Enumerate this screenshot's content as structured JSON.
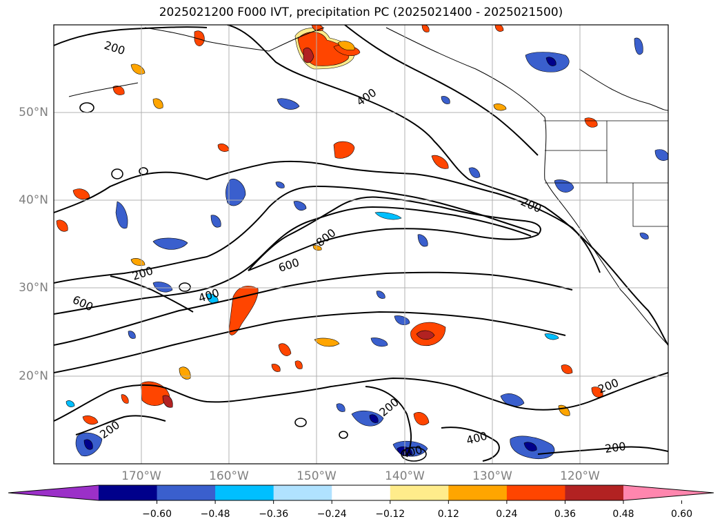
{
  "title": "2025021200 F000 IVT, precipitation PC (2025021400 - 2025021500)",
  "map": {
    "lat_ticks": [
      {
        "value": 50,
        "label": "50°N"
      },
      {
        "value": 40,
        "label": "40°N"
      },
      {
        "value": 30,
        "label": "30°N"
      },
      {
        "value": 20,
        "label": "20°N"
      }
    ],
    "lon_ticks": [
      {
        "value": -170,
        "label": "170°W"
      },
      {
        "value": -160,
        "label": "160°W"
      },
      {
        "value": -150,
        "label": "150°W"
      },
      {
        "value": -140,
        "label": "140°W"
      },
      {
        "value": -130,
        "label": "130°W"
      },
      {
        "value": -120,
        "label": "120°W"
      }
    ],
    "ivt_contour_labels": [
      "200",
      "400",
      "600",
      "800",
      "200",
      "400",
      "600",
      "200",
      "200",
      "400",
      "200",
      "400",
      "200",
      "200"
    ]
  },
  "colorbar": {
    "colors": [
      "#9b30c8",
      "#00008b",
      "#3a5fcd",
      "#00bfff",
      "#b0e2ff",
      "#ffffff",
      "#ffec8b",
      "#ffa500",
      "#ff4500",
      "#b22222",
      "#ff86ae"
    ],
    "tick_labels": [
      "−0.60",
      "−0.48",
      "−0.36",
      "−0.24",
      "−0.12",
      "0.12",
      "0.24",
      "0.36",
      "0.48",
      "0.60"
    ]
  }
}
